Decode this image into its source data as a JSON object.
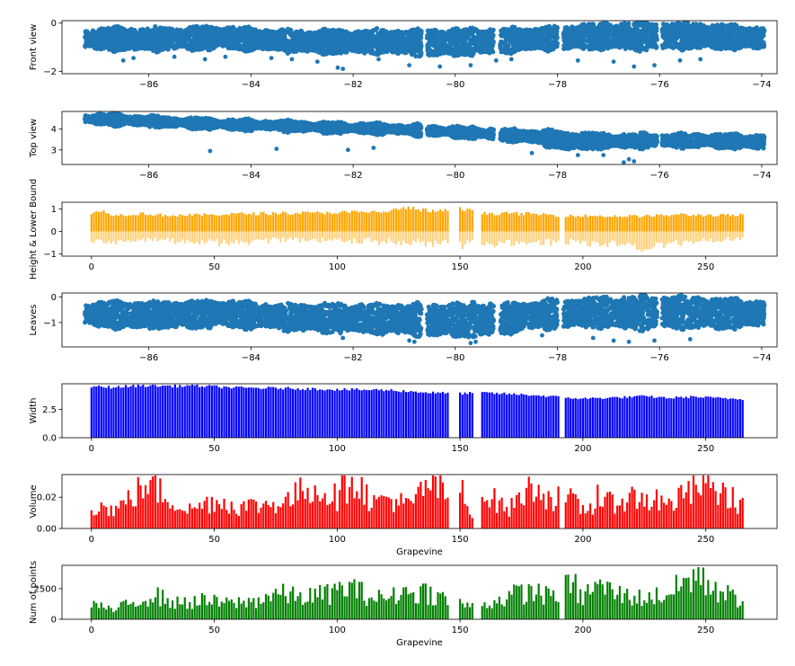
{
  "figure": {
    "background": "#ffffff"
  },
  "chart_data": [
    {
      "id": "front",
      "type": "scatter",
      "ylabel": "Front view",
      "xlim": [
        -87.7,
        -73.7
      ],
      "ylim": [
        -2.1,
        0.1
      ],
      "xticks": [
        -86,
        -84,
        -82,
        -80,
        -78,
        -76,
        -74
      ],
      "xtick_labels": [
        "−86",
        "−84",
        "−82",
        "−80",
        "−78",
        "−76",
        "−74"
      ],
      "yticks": [
        0,
        -2
      ],
      "ytick_labels": [
        "0",
        "−2"
      ],
      "color": "#1f77b4",
      "band": [
        [
          -87.25,
          -0.25,
          -1.05
        ],
        [
          -86.5,
          -0.2,
          -1.15
        ],
        [
          -85.5,
          -0.2,
          -1.1
        ],
        [
          -84.5,
          -0.15,
          -1.05
        ],
        [
          -83.5,
          -0.3,
          -1.15
        ],
        [
          -82.5,
          -0.3,
          -1.25
        ],
        [
          -81.5,
          -0.3,
          -1.25
        ],
        [
          -80.5,
          -0.3,
          -1.35
        ],
        [
          -79.5,
          -0.25,
          -1.3
        ],
        [
          -78.5,
          -0.2,
          -1.1
        ],
        [
          -77.5,
          -0.05,
          -1.05
        ],
        [
          -76.5,
          0.0,
          -1.1
        ],
        [
          -75.5,
          0.0,
          -1.05
        ],
        [
          -74.5,
          -0.1,
          -1.05
        ],
        [
          -73.95,
          -0.2,
          -1.05
        ]
      ],
      "gaps": [
        [
          -80.66,
          -80.55
        ],
        [
          -79.25,
          -79.12
        ],
        [
          -78.0,
          -77.88
        ],
        [
          -76.05,
          -75.95
        ]
      ],
      "outliers": [
        [
          -86.3,
          -1.45
        ],
        [
          -86.5,
          -1.55
        ],
        [
          -85.5,
          -1.4
        ],
        [
          -84.9,
          -1.5
        ],
        [
          -84.5,
          -1.4
        ],
        [
          -83.6,
          -1.45
        ],
        [
          -83.2,
          -1.5
        ],
        [
          -82.7,
          -1.6
        ],
        [
          -82.3,
          -1.85
        ],
        [
          -82.2,
          -1.9
        ],
        [
          -81.5,
          -1.5
        ],
        [
          -80.9,
          -1.75
        ],
        [
          -80.3,
          -1.8
        ],
        [
          -79.7,
          -1.75
        ],
        [
          -79.2,
          -1.55
        ],
        [
          -78.9,
          -1.5
        ],
        [
          -77.6,
          -1.55
        ],
        [
          -76.9,
          -1.6
        ],
        [
          -76.5,
          -1.8
        ],
        [
          -76.1,
          -1.75
        ],
        [
          -75.6,
          -1.55
        ],
        [
          -75.2,
          -1.5
        ]
      ]
    },
    {
      "id": "top",
      "type": "scatter",
      "ylabel": "Top view",
      "xlim": [
        -87.7,
        -73.7
      ],
      "ylim": [
        2.3,
        4.85
      ],
      "xticks": [
        -86,
        -84,
        -82,
        -80,
        -78,
        -76,
        -74
      ],
      "xtick_labels": [
        "−86",
        "−84",
        "−82",
        "−80",
        "−78",
        "−76",
        "−74"
      ],
      "yticks": [
        4,
        3
      ],
      "ytick_labels": [
        "4",
        "3"
      ],
      "color": "#1f77b4",
      "band": [
        [
          -87.25,
          4.72,
          4.25
        ],
        [
          -86.5,
          4.68,
          4.2
        ],
        [
          -85.5,
          4.55,
          4.1
        ],
        [
          -84.5,
          4.45,
          4.0
        ],
        [
          -83.5,
          4.4,
          3.95
        ],
        [
          -82.5,
          4.3,
          3.85
        ],
        [
          -81.5,
          4.25,
          3.8
        ],
        [
          -80.5,
          4.15,
          3.7
        ],
        [
          -79.5,
          4.05,
          3.55
        ],
        [
          -78.5,
          3.95,
          3.35
        ],
        [
          -77.8,
          3.85,
          3.0
        ],
        [
          -77.0,
          3.75,
          3.1
        ],
        [
          -76.0,
          3.75,
          3.15
        ],
        [
          -75.0,
          3.75,
          3.15
        ],
        [
          -73.95,
          3.7,
          3.05
        ]
      ],
      "gaps": [
        [
          -80.66,
          -80.55
        ],
        [
          -79.25,
          -79.12
        ],
        [
          -76.05,
          -75.95
        ]
      ],
      "outliers": [
        [
          -84.8,
          2.95
        ],
        [
          -83.5,
          3.05
        ],
        [
          -82.1,
          3.0
        ],
        [
          -81.6,
          3.1
        ],
        [
          -78.5,
          2.85
        ],
        [
          -77.6,
          2.75
        ],
        [
          -76.6,
          2.55
        ],
        [
          -76.5,
          2.45
        ],
        [
          -76.7,
          2.4
        ],
        [
          -77.1,
          2.75
        ]
      ]
    },
    {
      "id": "height",
      "type": "bar",
      "ylabel": "Height & Lower Bound",
      "xlim": [
        -12,
        279
      ],
      "ylim": [
        -1.1,
        1.3
      ],
      "xticks": [
        0,
        50,
        100,
        150,
        200,
        250
      ],
      "xtick_labels": [
        "0",
        "50",
        "100",
        "150",
        "200",
        "250"
      ],
      "yticks": [
        1,
        0,
        -1
      ],
      "ytick_labels": [
        "1",
        "0",
        "−1"
      ],
      "colors": {
        "upper": "#ffa500",
        "lower": "#ffd27f"
      },
      "n": 266,
      "missing": [
        146,
        147,
        148,
        149,
        156,
        157,
        158,
        191,
        192
      ],
      "upper_anchors": [
        [
          0,
          0.78
        ],
        [
          3,
          0.95
        ],
        [
          10,
          0.72
        ],
        [
          20,
          0.8
        ],
        [
          30,
          0.72
        ],
        [
          40,
          0.72
        ],
        [
          50,
          0.75
        ],
        [
          60,
          0.78
        ],
        [
          70,
          0.8
        ],
        [
          80,
          0.82
        ],
        [
          90,
          0.82
        ],
        [
          100,
          0.85
        ],
        [
          110,
          0.85
        ],
        [
          120,
          0.88
        ],
        [
          128,
          1.05
        ],
        [
          140,
          0.88
        ],
        [
          150,
          1.0
        ],
        [
          160,
          0.8
        ],
        [
          170,
          0.8
        ],
        [
          180,
          0.78
        ],
        [
          190,
          0.72
        ],
        [
          200,
          0.7
        ],
        [
          210,
          0.68
        ],
        [
          220,
          0.68
        ],
        [
          230,
          0.7
        ],
        [
          240,
          0.75
        ],
        [
          250,
          0.72
        ],
        [
          265,
          0.72
        ]
      ],
      "lower_anchors": [
        [
          0,
          -0.45
        ],
        [
          5,
          -0.55
        ],
        [
          20,
          -0.4
        ],
        [
          50,
          -0.6
        ],
        [
          80,
          -0.45
        ],
        [
          100,
          -0.5
        ],
        [
          130,
          -0.55
        ],
        [
          150,
          -0.7
        ],
        [
          175,
          -0.55
        ],
        [
          200,
          -0.55
        ],
        [
          225,
          -0.8
        ],
        [
          250,
          -0.45
        ],
        [
          265,
          -0.4
        ]
      ]
    },
    {
      "id": "leaves",
      "type": "scatter",
      "ylabel": "Leaves",
      "xlim": [
        -87.7,
        -73.7
      ],
      "ylim": [
        -1.95,
        0.15
      ],
      "xticks": [
        -86,
        -84,
        -82,
        -80,
        -78,
        -76,
        -74
      ],
      "xtick_labels": [
        "−86",
        "−84",
        "−82",
        "−80",
        "−78",
        "−76",
        "−74"
      ],
      "yticks": [
        0,
        -1
      ],
      "ytick_labels": [
        "0",
        "−1"
      ],
      "color": "#1f77b4",
      "band": [
        [
          -87.25,
          -0.25,
          -1.1
        ],
        [
          -86.5,
          -0.2,
          -1.2
        ],
        [
          -85.5,
          -0.2,
          -1.2
        ],
        [
          -84.5,
          -0.15,
          -1.15
        ],
        [
          -83.5,
          -0.3,
          -1.25
        ],
        [
          -82.5,
          -0.3,
          -1.35
        ],
        [
          -81.5,
          -0.3,
          -1.4
        ],
        [
          -80.5,
          -0.3,
          -1.5
        ],
        [
          -79.5,
          -0.25,
          -1.55
        ],
        [
          -78.5,
          -0.2,
          -1.25
        ],
        [
          -77.5,
          -0.05,
          -1.15
        ],
        [
          -76.5,
          0.0,
          -1.25
        ],
        [
          -75.5,
          0.0,
          -1.2
        ],
        [
          -74.5,
          -0.1,
          -1.2
        ],
        [
          -73.95,
          -0.2,
          -1.1
        ]
      ],
      "gaps": [
        [
          -80.66,
          -80.55
        ],
        [
          -79.25,
          -79.12
        ],
        [
          -78.0,
          -77.88
        ],
        [
          -76.05,
          -75.95
        ]
      ],
      "outliers": [
        [
          -80.9,
          -1.7
        ],
        [
          -80.8,
          -1.75
        ],
        [
          -79.7,
          -1.8
        ],
        [
          -79.6,
          -1.75
        ],
        [
          -77.3,
          -1.6
        ],
        [
          -76.9,
          -1.7
        ],
        [
          -76.6,
          -1.75
        ],
        [
          -76.1,
          -1.7
        ],
        [
          -75.4,
          -1.65
        ],
        [
          -78.3,
          -1.5
        ],
        [
          -82.2,
          -1.6
        ]
      ]
    },
    {
      "id": "width",
      "type": "bar",
      "ylabel": "Width",
      "xlim": [
        -12,
        279
      ],
      "ylim": [
        0,
        4.75
      ],
      "xticks": [
        0,
        50,
        100,
        150,
        200,
        250
      ],
      "xtick_labels": [
        "0",
        "50",
        "100",
        "150",
        "200",
        "250"
      ],
      "yticks": [
        2.5,
        0
      ],
      "ytick_labels": [
        "2.5",
        "0.0"
      ],
      "color": "#0000ff",
      "n": 266,
      "missing": [
        146,
        147,
        148,
        149,
        156,
        157,
        158,
        191,
        192
      ],
      "anchors": [
        [
          0,
          4.5
        ],
        [
          10,
          4.45
        ],
        [
          20,
          4.6
        ],
        [
          35,
          4.55
        ],
        [
          40,
          4.6
        ],
        [
          60,
          4.4
        ],
        [
          80,
          4.35
        ],
        [
          100,
          4.25
        ],
        [
          120,
          4.2
        ],
        [
          140,
          3.95
        ],
        [
          150,
          3.9
        ],
        [
          160,
          3.95
        ],
        [
          180,
          3.75
        ],
        [
          195,
          3.5
        ],
        [
          200,
          3.45
        ],
        [
          215,
          3.55
        ],
        [
          225,
          3.65
        ],
        [
          235,
          3.5
        ],
        [
          245,
          3.6
        ],
        [
          265,
          3.4
        ]
      ]
    },
    {
      "id": "volume",
      "type": "bar",
      "ylabel": "Volume",
      "xlabel": "Grapevine",
      "xlim": [
        -12,
        279
      ],
      "ylim": [
        0,
        0.0345
      ],
      "xticks": [
        0,
        50,
        100,
        150,
        200,
        250
      ],
      "xtick_labels": [
        "0",
        "50",
        "100",
        "150",
        "200",
        "250"
      ],
      "yticks": [
        0.02,
        0.0
      ],
      "ytick_labels": [
        "0.02",
        "0.00"
      ],
      "color": "#ff0000",
      "n": 266,
      "missing": [
        146,
        147,
        148,
        149,
        156,
        157,
        158,
        191,
        192
      ],
      "anchors": [
        [
          0,
          0.015
        ],
        [
          10,
          0.012
        ],
        [
          24,
          0.03
        ],
        [
          30,
          0.02
        ],
        [
          40,
          0.012
        ],
        [
          50,
          0.018
        ],
        [
          60,
          0.014
        ],
        [
          70,
          0.015
        ],
        [
          80,
          0.018
        ],
        [
          88,
          0.026
        ],
        [
          94,
          0.024
        ],
        [
          100,
          0.02
        ],
        [
          106,
          0.033
        ],
        [
          115,
          0.016
        ],
        [
          120,
          0.02
        ],
        [
          130,
          0.014
        ],
        [
          137,
          0.03
        ],
        [
          146,
          0.02
        ],
        [
          155,
          0.012
        ],
        [
          160,
          0.022
        ],
        [
          170,
          0.012
        ],
        [
          177,
          0.025
        ],
        [
          185,
          0.02
        ],
        [
          195,
          0.018
        ],
        [
          200,
          0.012
        ],
        [
          210,
          0.016
        ],
        [
          220,
          0.02
        ],
        [
          235,
          0.015
        ],
        [
          246,
          0.025
        ],
        [
          255,
          0.024
        ],
        [
          265,
          0.015
        ]
      ],
      "peaks": [
        [
          24,
          0.031
        ],
        [
          88,
          0.026
        ],
        [
          106,
          0.033
        ],
        [
          132,
          0.022
        ],
        [
          136,
          0.031
        ],
        [
          151,
          0.031
        ],
        [
          177,
          0.026
        ],
        [
          182,
          0.028
        ],
        [
          206,
          0.028
        ],
        [
          230,
          0.025
        ],
        [
          239,
          0.026
        ],
        [
          246,
          0.028
        ],
        [
          250,
          0.029
        ]
      ]
    },
    {
      "id": "points",
      "type": "bar",
      "ylabel": "Num of points",
      "xlabel": "Grapevine",
      "xlim": [
        -12,
        279
      ],
      "ylim": [
        0,
        4400
      ],
      "xticks": [
        0,
        50,
        100,
        150,
        200,
        250
      ],
      "xtick_labels": [
        "0",
        "50",
        "100",
        "150",
        "200",
        "250"
      ],
      "yticks": [
        2500,
        0
      ],
      "ytick_labels": [
        "2500",
        "0"
      ],
      "color": "#008000",
      "n": 266,
      "missing": [
        146,
        147,
        148,
        149,
        156,
        157,
        158,
        191,
        192
      ],
      "anchors": [
        [
          0,
          1400
        ],
        [
          8,
          700
        ],
        [
          15,
          1200
        ],
        [
          25,
          2000
        ],
        [
          35,
          1300
        ],
        [
          45,
          1500
        ],
        [
          55,
          1300
        ],
        [
          65,
          1400
        ],
        [
          75,
          2100
        ],
        [
          85,
          1800
        ],
        [
          95,
          2000
        ],
        [
          105,
          2600
        ],
        [
          115,
          1700
        ],
        [
          125,
          1900
        ],
        [
          135,
          2300
        ],
        [
          145,
          1600
        ],
        [
          155,
          1000
        ],
        [
          165,
          1500
        ],
        [
          175,
          2200
        ],
        [
          185,
          1900
        ],
        [
          195,
          2700
        ],
        [
          200,
          1700
        ],
        [
          205,
          2900
        ],
        [
          215,
          2000
        ],
        [
          225,
          1700
        ],
        [
          235,
          2100
        ],
        [
          245,
          3500
        ],
        [
          255,
          2300
        ],
        [
          265,
          1500
        ]
      ],
      "peaks": [
        [
          105,
          3050
        ],
        [
          127,
          2600
        ],
        [
          182,
          2900
        ],
        [
          197,
          3700
        ],
        [
          207,
          3250
        ],
        [
          247,
          4250
        ],
        [
          254,
          3050
        ]
      ]
    }
  ]
}
